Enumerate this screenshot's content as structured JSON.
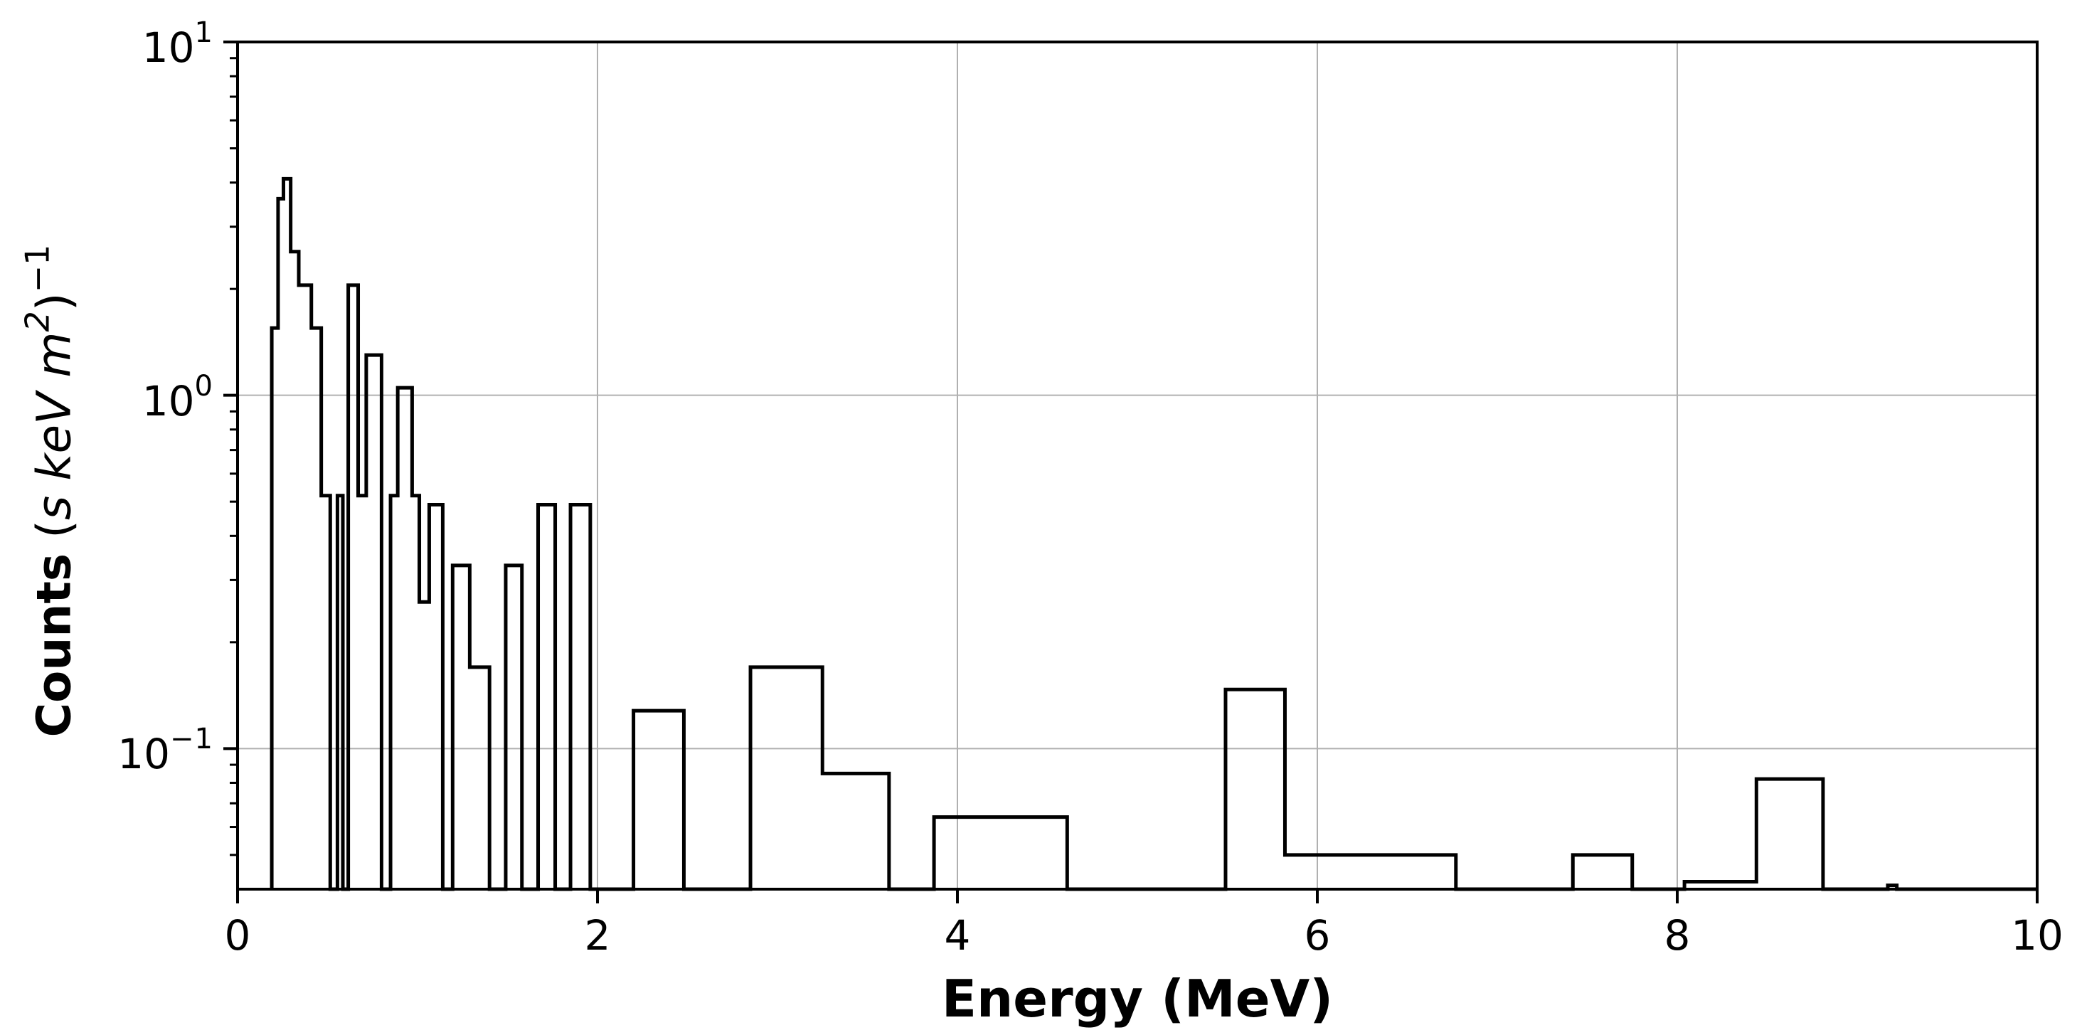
{
  "figure": {
    "background": "#ffffff",
    "line_color": "#000000",
    "grid_color": "#b0b0b0",
    "spine_color": "#000000"
  },
  "labels": {
    "xlabel": "Energy (MeV)",
    "ylabel_word": "Counts",
    "ylabel_units_open": "(",
    "ylabel_units_body": "s keV m",
    "ylabel_units_sq": "2",
    "ylabel_units_close": ")",
    "ylabel_units_exp": "−1"
  },
  "chart_data": {
    "type": "bar",
    "subtype": "step-histogram",
    "title": "",
    "xlabel": "Energy (MeV)",
    "ylabel": "Counts (s keV m^2)^-1",
    "xlim": [
      0,
      10
    ],
    "ylim": [
      0.04,
      10
    ],
    "yscale": "log",
    "grid": true,
    "legend": "none",
    "x_ticks": [
      0,
      2,
      4,
      6,
      8,
      10
    ],
    "x_tick_labels": [
      "0",
      "2",
      "4",
      "6",
      "8",
      "10"
    ],
    "y_ticks": [
      {
        "value": 10,
        "base": "10",
        "exp": "1"
      },
      {
        "value": 1,
        "base": "10",
        "exp": "0"
      },
      {
        "value": 0.1,
        "base": "10",
        "exp": "−1"
      }
    ],
    "y_gridline_values": [
      1,
      0.1
    ],
    "x_gridline_values": [
      2,
      4,
      6,
      8
    ],
    "steps": [
      [
        0.19,
        0.225,
        1.55
      ],
      [
        0.225,
        0.255,
        3.6
      ],
      [
        0.255,
        0.295,
        4.1
      ],
      [
        0.295,
        0.34,
        2.55
      ],
      [
        0.34,
        0.41,
        2.05
      ],
      [
        0.41,
        0.465,
        1.55
      ],
      [
        0.465,
        0.515,
        0.52
      ],
      [
        0.515,
        0.555,
        0
      ],
      [
        0.555,
        0.585,
        0.52
      ],
      [
        0.585,
        0.615,
        0
      ],
      [
        0.615,
        0.67,
        2.05
      ],
      [
        0.67,
        0.715,
        0.52
      ],
      [
        0.715,
        0.8,
        1.3
      ],
      [
        0.8,
        0.85,
        0
      ],
      [
        0.85,
        0.89,
        0.52
      ],
      [
        0.89,
        0.97,
        1.05
      ],
      [
        0.97,
        1.01,
        0.52
      ],
      [
        1.01,
        1.065,
        0.26
      ],
      [
        1.065,
        1.14,
        0.49
      ],
      [
        1.14,
        1.195,
        0
      ],
      [
        1.195,
        1.29,
        0.33
      ],
      [
        1.29,
        1.4,
        0.17
      ],
      [
        1.4,
        1.49,
        0
      ],
      [
        1.49,
        1.58,
        0.33
      ],
      [
        1.58,
        1.67,
        0
      ],
      [
        1.67,
        1.765,
        0.49
      ],
      [
        1.765,
        1.85,
        0
      ],
      [
        1.85,
        1.96,
        0.49
      ],
      [
        1.96,
        2.2,
        0
      ],
      [
        2.2,
        2.48,
        0.128
      ],
      [
        2.48,
        2.85,
        0
      ],
      [
        2.85,
        3.25,
        0.17
      ],
      [
        3.25,
        3.62,
        0.085
      ],
      [
        3.62,
        3.87,
        0
      ],
      [
        3.87,
        4.61,
        0.064
      ],
      [
        4.61,
        5.49,
        0
      ],
      [
        5.49,
        5.82,
        0.147
      ],
      [
        5.82,
        6.77,
        0.05
      ],
      [
        6.77,
        7.42,
        0
      ],
      [
        7.42,
        7.75,
        0.05
      ],
      [
        7.75,
        8.04,
        0
      ],
      [
        8.04,
        8.44,
        0.042
      ],
      [
        8.44,
        8.81,
        0.082
      ],
      [
        8.81,
        9.17,
        0
      ],
      [
        9.17,
        9.22,
        0.041
      ],
      [
        9.22,
        10.0,
        0
      ]
    ]
  }
}
